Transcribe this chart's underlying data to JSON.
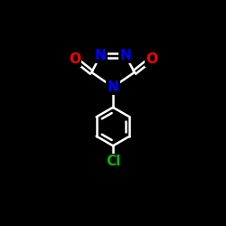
{
  "background_color": "#000000",
  "bond_color": "#ffffff",
  "bond_width": 1.8,
  "atom_colors": {
    "N": "#0000ff",
    "O": "#ff0000",
    "Cl": "#00bb00",
    "C": "#ffffff"
  },
  "font_size_atom": 11,
  "font_size_cl": 11,
  "xlim": [
    0,
    10
  ],
  "ylim": [
    0,
    10
  ]
}
